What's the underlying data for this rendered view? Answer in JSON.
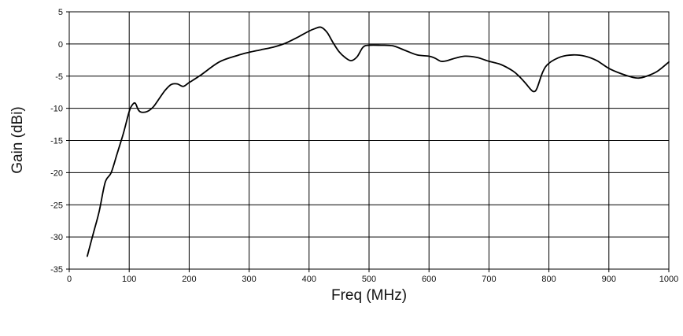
{
  "chart_data": {
    "type": "line",
    "title": "",
    "xlabel": "Freq (MHz)",
    "ylabel": "Gain (dBi)",
    "xlim": [
      0,
      1000
    ],
    "ylim": [
      -35,
      5
    ],
    "xticks": [
      0,
      100,
      200,
      300,
      400,
      500,
      600,
      700,
      800,
      900,
      1000
    ],
    "yticks": [
      5,
      0,
      -5,
      -10,
      -15,
      -20,
      -25,
      -30,
      -35
    ],
    "grid": true,
    "legend": "none",
    "line_color": "#000000",
    "series": [
      {
        "x": [
          30,
          40,
          50,
          60,
          70,
          80,
          90,
          100,
          105,
          110,
          115,
          120,
          130,
          140,
          150,
          160,
          170,
          180,
          190,
          200,
          220,
          250,
          280,
          300,
          320,
          340,
          360,
          380,
          400,
          410,
          420,
          430,
          440,
          450,
          460,
          470,
          480,
          490,
          500,
          520,
          540,
          560,
          580,
          600,
          610,
          620,
          630,
          640,
          660,
          680,
          700,
          720,
          740,
          750,
          760,
          770,
          775,
          780,
          790,
          800,
          820,
          840,
          860,
          880,
          900,
          920,
          940,
          950,
          960,
          980,
          1000
        ],
        "y": [
          -33,
          -29.5,
          -26,
          -21.5,
          -20,
          -17,
          -14,
          -10.5,
          -9.5,
          -9.2,
          -10.2,
          -10.6,
          -10.5,
          -9.8,
          -8.5,
          -7.2,
          -6.3,
          -6.2,
          -6.6,
          -6.0,
          -4.8,
          -2.8,
          -1.8,
          -1.3,
          -0.9,
          -0.5,
          0.1,
          1.0,
          2.0,
          2.4,
          2.6,
          1.8,
          0.2,
          -1.2,
          -2.1,
          -2.6,
          -2.0,
          -0.5,
          -0.2,
          -0.2,
          -0.3,
          -1.0,
          -1.7,
          -1.9,
          -2.2,
          -2.7,
          -2.6,
          -2.3,
          -1.9,
          -2.1,
          -2.7,
          -3.2,
          -4.2,
          -5.0,
          -6.0,
          -7.1,
          -7.4,
          -6.9,
          -4.3,
          -3.0,
          -2.0,
          -1.7,
          -1.9,
          -2.6,
          -3.8,
          -4.6,
          -5.2,
          -5.3,
          -5.1,
          -4.3,
          -2.8
        ]
      }
    ]
  }
}
